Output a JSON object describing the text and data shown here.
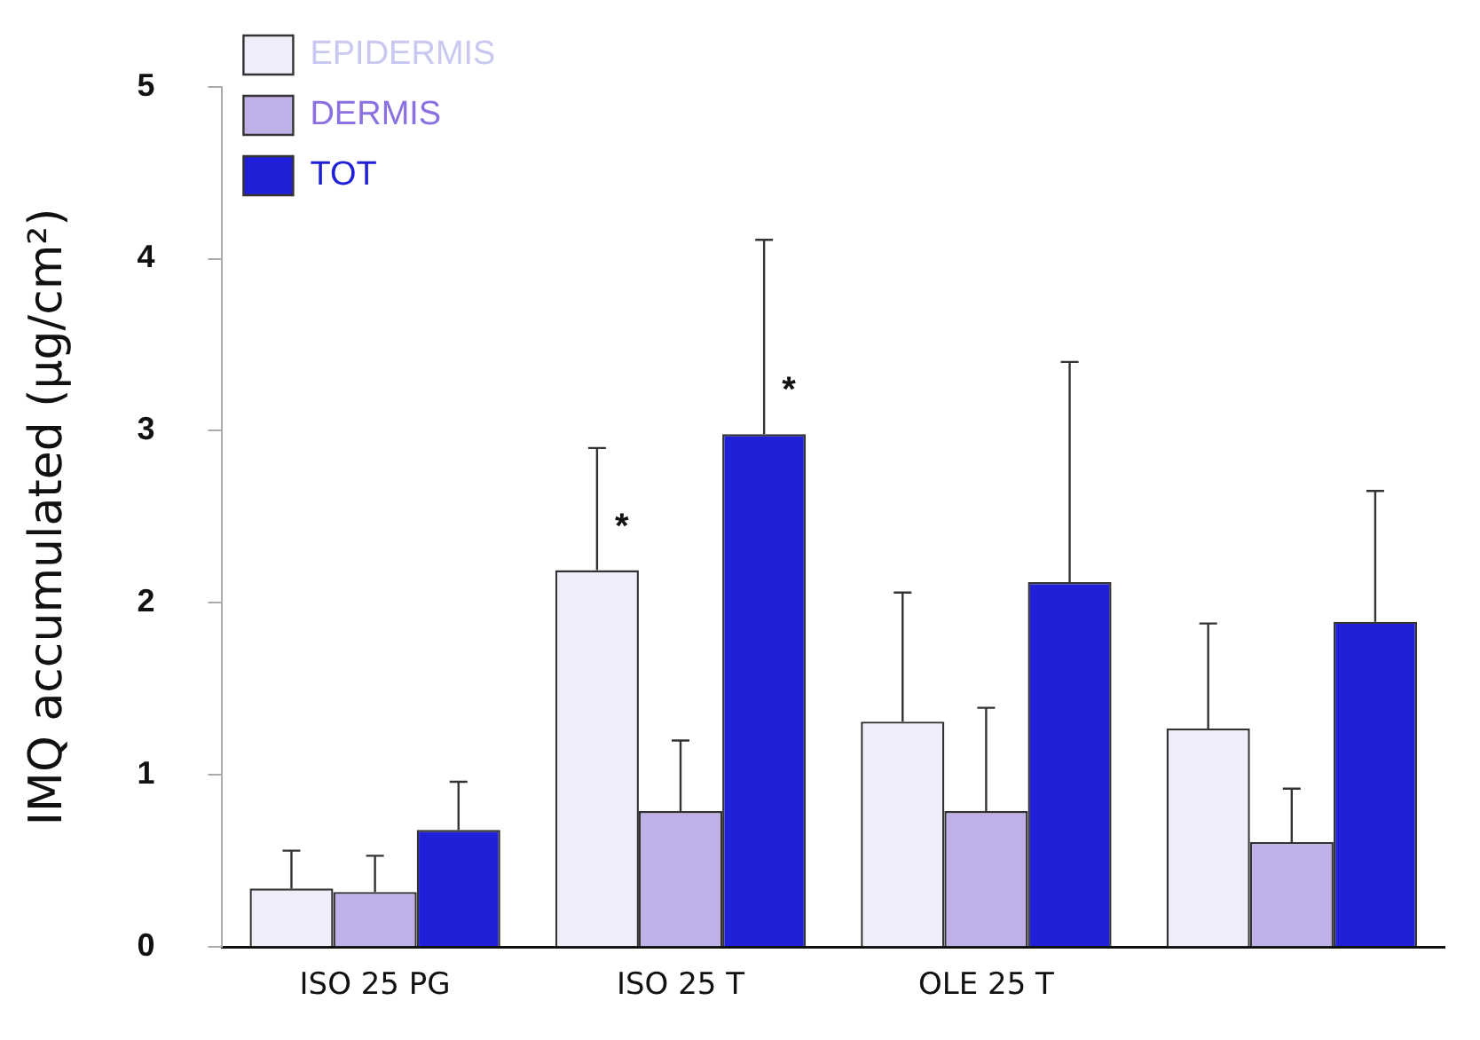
{
  "chart_data": {
    "type": "bar",
    "ylabel": "IMQ accumulated (µg/cm²)",
    "categories": [
      "ISO 25 PG",
      "ISO 25 T",
      "OLE 25 T",
      null
    ],
    "series": [
      {
        "name": "EPIDERMIS",
        "color": "#eeeefa",
        "values": [
          0.34,
          2.19,
          1.31,
          1.27
        ],
        "errors": [
          [
            0.34,
            0.56
          ],
          [
            2.19,
            2.9
          ],
          [
            1.31,
            2.06
          ],
          [
            1.27,
            1.88
          ]
        ]
      },
      {
        "name": "DERMIS",
        "color": "#c0b0e8",
        "values": [
          0.32,
          0.79,
          0.79,
          0.61
        ],
        "errors": [
          [
            0.32,
            0.53
          ],
          [
            0.79,
            1.2
          ],
          [
            0.79,
            1.39
          ],
          [
            0.61,
            0.92
          ]
        ]
      },
      {
        "name": "TOT",
        "color": "#2020d8",
        "values": [
          0.68,
          2.98,
          2.12,
          1.89
        ],
        "errors": [
          [
            0.68,
            0.96
          ],
          [
            2.98,
            4.11
          ],
          [
            2.12,
            3.4
          ],
          [
            1.89,
            2.65
          ]
        ]
      }
    ],
    "annotations": [
      "*",
      "*"
    ],
    "ylim": [
      0,
      5
    ],
    "yticks": [
      0,
      1,
      2,
      3,
      4,
      5
    ],
    "grid": false,
    "legend": "top left"
  }
}
